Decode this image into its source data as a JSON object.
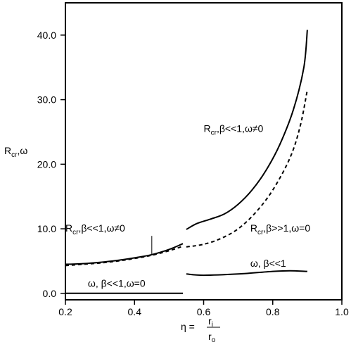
{
  "chart_data": {
    "type": "line",
    "xlim": [
      0.2,
      1.0
    ],
    "ylim": [
      -1.0,
      45.0
    ],
    "x_ticks": [
      0.2,
      0.4,
      0.6,
      0.8,
      1.0
    ],
    "x_tick_labels": [
      "0.2",
      "0.4",
      "0.6",
      "0.8",
      "1.0"
    ],
    "y_ticks": [
      0,
      10,
      20,
      30,
      40
    ],
    "y_tick_labels": [
      "0.0",
      "10.0",
      "20.0",
      "30.0",
      "40.0"
    ],
    "grid": false,
    "xlabel": {
      "main": "η =",
      "numerator": "r",
      "numerator_sub": "i",
      "denominator": "r",
      "denominator_sub": "o"
    },
    "ylabel": {
      "main": "R",
      "sub": "cr",
      "tail": ",ω"
    },
    "series": [
      {
        "style": "solid",
        "points": [
          [
            0.2,
            4.5
          ],
          [
            0.25,
            4.6
          ],
          [
            0.3,
            4.8
          ],
          [
            0.35,
            5.1
          ],
          [
            0.4,
            5.5
          ],
          [
            0.45,
            6.0
          ],
          [
            0.5,
            6.8
          ],
          [
            0.54,
            7.7
          ]
        ]
      },
      {
        "style": "dashed",
        "points": [
          [
            0.2,
            4.3
          ],
          [
            0.25,
            4.5
          ],
          [
            0.3,
            4.7
          ],
          [
            0.35,
            5.0
          ],
          [
            0.4,
            5.4
          ],
          [
            0.45,
            5.9
          ],
          [
            0.5,
            6.6
          ],
          [
            0.54,
            7.3
          ]
        ]
      },
      {
        "style": "solid",
        "points": [
          [
            0.55,
            9.9
          ],
          [
            0.58,
            10.8
          ],
          [
            0.62,
            11.5
          ],
          [
            0.66,
            12.3
          ],
          [
            0.7,
            13.8
          ],
          [
            0.74,
            16.0
          ],
          [
            0.78,
            19.0
          ],
          [
            0.82,
            23.0
          ],
          [
            0.86,
            28.5
          ],
          [
            0.89,
            35.0
          ],
          [
            0.9,
            40.8
          ]
        ]
      },
      {
        "style": "dashed",
        "points": [
          [
            0.55,
            7.2
          ],
          [
            0.6,
            7.6
          ],
          [
            0.65,
            8.5
          ],
          [
            0.7,
            10.0
          ],
          [
            0.75,
            12.5
          ],
          [
            0.8,
            16.0
          ],
          [
            0.85,
            21.0
          ],
          [
            0.88,
            26.0
          ],
          [
            0.9,
            31.5
          ]
        ]
      },
      {
        "style": "solid",
        "points": [
          [
            0.2,
            0.0
          ],
          [
            0.54,
            0.0
          ]
        ]
      },
      {
        "style": "solid",
        "points": [
          [
            0.55,
            3.0
          ],
          [
            0.6,
            2.8
          ],
          [
            0.7,
            3.0
          ],
          [
            0.8,
            3.4
          ],
          [
            0.85,
            3.5
          ],
          [
            0.9,
            3.4
          ]
        ]
      }
    ],
    "annotations": [
      {
        "main": "R",
        "sub": "cr",
        "tail": ",β<<1,ω≠0",
        "x": 0.6,
        "y": 25.0
      },
      {
        "main": "R",
        "sub": "cr",
        "tail": ",β<<1,ω≠0",
        "x": 0.2,
        "y": 9.6,
        "leader": [
          [
            0.45,
            8.9
          ],
          [
            0.45,
            5.9
          ]
        ]
      },
      {
        "main": "R",
        "sub": "cr",
        "tail": ",β>>1,ω=0",
        "x": 0.735,
        "y": 9.6
      },
      {
        "main": "ω, β<<1",
        "sub": "",
        "tail": "",
        "x": 0.735,
        "y": 4.1
      },
      {
        "main": "ω, β<<1,ω=0",
        "sub": "",
        "tail": "",
        "x": 0.265,
        "y": 1.0
      }
    ]
  }
}
